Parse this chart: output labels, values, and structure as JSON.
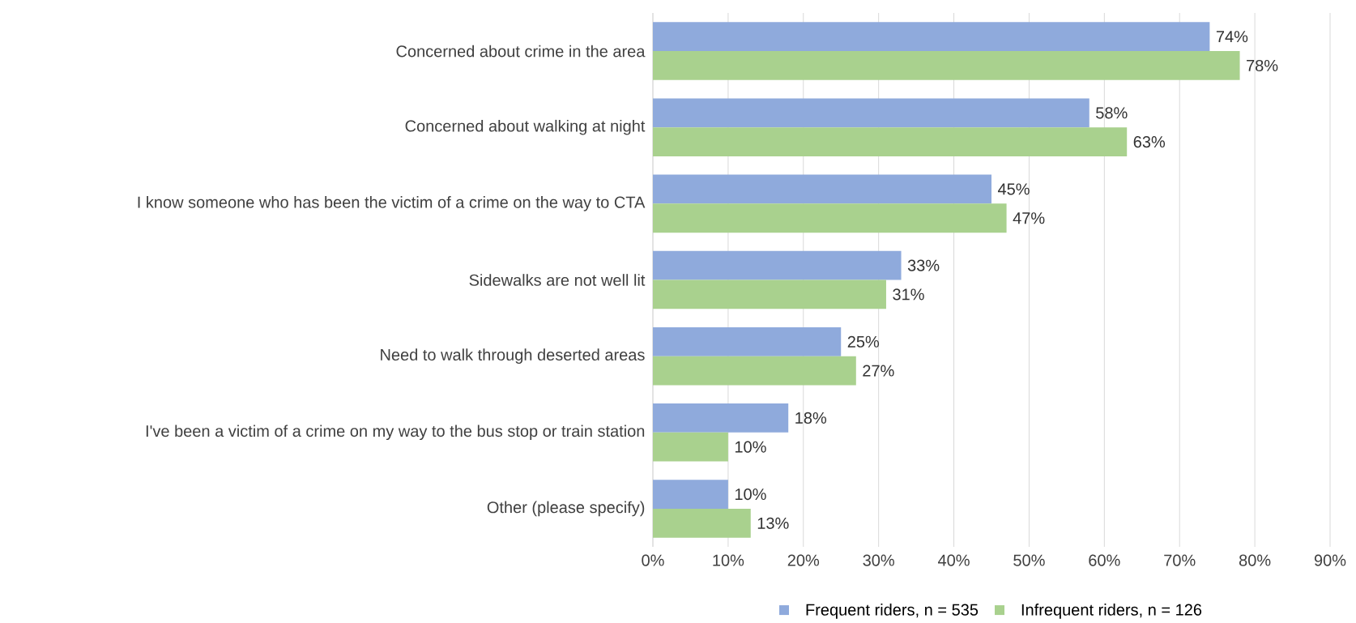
{
  "chart_data": {
    "type": "bar",
    "orientation": "horizontal",
    "categories": [
      "Concerned about crime in the area",
      "Concerned about walking at night",
      "I know someone who has been the victim of a crime on the way to CTA",
      "Sidewalks are not well lit",
      "Need to walk through deserted areas",
      "I've been a victim of a crime on my way to the bus stop or train station",
      "Other (please specify)"
    ],
    "series": [
      {
        "name": "Frequent riders, n = 535",
        "color": "#8faadc",
        "values": [
          74,
          58,
          45,
          33,
          25,
          18,
          10
        ],
        "value_labels": [
          "74%",
          "58%",
          "45%",
          "33%",
          "25%",
          "18%",
          "10%"
        ]
      },
      {
        "name": "Infrequent riders, n = 126",
        "color": "#a9d18e",
        "values": [
          78,
          63,
          47,
          31,
          27,
          10,
          13
        ],
        "value_labels": [
          "78%",
          "63%",
          "47%",
          "31%",
          "27%",
          "10%",
          "13%"
        ]
      }
    ],
    "xlim": [
      0,
      90
    ],
    "xticks": [
      {
        "value": 0,
        "label": "0%"
      },
      {
        "value": 10,
        "label": "10%"
      },
      {
        "value": 20,
        "label": "20%"
      },
      {
        "value": 30,
        "label": "30%"
      },
      {
        "value": 40,
        "label": "40%"
      },
      {
        "value": 50,
        "label": "50%"
      },
      {
        "value": 60,
        "label": "60%"
      },
      {
        "value": 70,
        "label": "70%"
      },
      {
        "value": 80,
        "label": "80%"
      },
      {
        "value": 90,
        "label": "90%"
      }
    ],
    "grid": "x",
    "legend": "bottom"
  }
}
